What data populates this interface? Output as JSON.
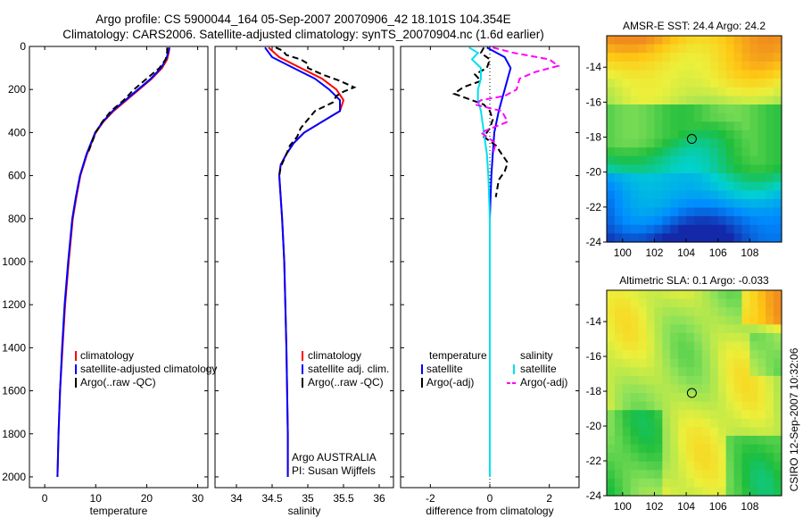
{
  "titles": {
    "line1": "Argo profile: CS 5900044_164 05-Sep-2007 20070906_42 18.101S 104.354E",
    "line2": "Climatology: CARS2006. Satellite-adjusted climatology: synTS_20070904.nc (1.6d earlier)"
  },
  "side_label": "CSIRO 12-Sep-2007 10:32:06",
  "colors": {
    "climatology": "#ff0000",
    "satellite": "#0000ff",
    "argo": "#000000",
    "sal_satellite": "#00e0f0",
    "sal_argo": "#ff00ff"
  },
  "chart_data": [
    {
      "type": "line",
      "panel": "temperature",
      "xlabel": "temperature",
      "ylabel": "",
      "xlim": [
        -3,
        32
      ],
      "ylim": [
        2050,
        0
      ],
      "xticks": [
        0,
        10,
        20,
        30
      ],
      "yticks": [
        0,
        200,
        400,
        600,
        800,
        1000,
        1200,
        1400,
        1600,
        1800,
        2000
      ],
      "legend": [
        "climatology",
        "satellite-adjusted climatology",
        "Argo(..raw -QC)"
      ],
      "series": [
        {
          "name": "climatology",
          "depth": [
            5,
            30,
            60,
            100,
            150,
            200,
            250,
            300,
            350,
            400,
            500,
            600,
            700,
            800,
            1000,
            1200,
            1400,
            1600,
            1800,
            2000
          ],
          "values": [
            24.5,
            24.3,
            24.0,
            23.0,
            21.0,
            18.5,
            16.0,
            13.5,
            11.5,
            10.0,
            8.3,
            7.0,
            6.2,
            5.5,
            4.7,
            4.0,
            3.5,
            3.0,
            2.7,
            2.5
          ]
        },
        {
          "name": "satellite-adjusted climatology",
          "depth": [
            5,
            30,
            60,
            100,
            150,
            200,
            250,
            300,
            350,
            400,
            500,
            600,
            700,
            800,
            1000,
            1200,
            1400,
            1600,
            1800,
            2000
          ],
          "values": [
            24.4,
            24.2,
            23.8,
            22.8,
            20.8,
            18.3,
            15.8,
            13.3,
            11.4,
            9.9,
            8.2,
            6.9,
            6.1,
            5.4,
            4.6,
            3.9,
            3.4,
            3.0,
            2.7,
            2.5
          ]
        },
        {
          "name": "Argo(..raw -QC)",
          "depth": [
            5,
            30,
            60,
            100,
            150,
            200,
            250,
            300,
            350,
            400,
            500
          ],
          "values": [
            24.0,
            24.0,
            23.7,
            22.5,
            20.0,
            17.5,
            15.5,
            13.0,
            11.3,
            10.0,
            8.4
          ]
        }
      ]
    },
    {
      "type": "line",
      "panel": "salinity",
      "xlabel": "salinity",
      "xlim": [
        33.7,
        36.2
      ],
      "ylim": [
        2050,
        0
      ],
      "xticks": [
        34,
        34.5,
        35,
        35.5,
        36
      ],
      "legend": [
        "climatology",
        "satellite adj. clim.",
        "Argo(..raw -QC)"
      ],
      "annotation": [
        "Argo AUSTRALIA",
        "PI: Susan Wijffels"
      ],
      "series": [
        {
          "name": "climatology",
          "depth": [
            5,
            50,
            100,
            150,
            200,
            250,
            300,
            350,
            400,
            450,
            500,
            550,
            600,
            700,
            800,
            1000,
            1400,
            1800,
            2000
          ],
          "values": [
            34.45,
            34.6,
            34.9,
            35.2,
            35.4,
            35.5,
            35.45,
            35.2,
            34.95,
            34.8,
            34.7,
            34.62,
            34.6,
            34.62,
            34.64,
            34.67,
            34.7,
            34.72,
            34.72
          ]
        },
        {
          "name": "satellite adj. clim.",
          "depth": [
            5,
            50,
            100,
            150,
            200,
            250,
            300,
            350,
            400,
            450,
            500,
            550,
            600,
            700,
            800,
            1000,
            1400,
            1800,
            2000
          ],
          "values": [
            34.4,
            34.5,
            34.8,
            35.1,
            35.3,
            35.45,
            35.45,
            35.2,
            34.95,
            34.8,
            34.7,
            34.62,
            34.6,
            34.62,
            34.64,
            34.67,
            34.7,
            34.72,
            34.72
          ]
        },
        {
          "name": "Argo(..raw -QC)",
          "depth": [
            5,
            20,
            40,
            60,
            80,
            100,
            130,
            160,
            190,
            210,
            230,
            260,
            300,
            340,
            380,
            420,
            460,
            500,
            560,
            600
          ],
          "values": [
            34.55,
            34.65,
            34.7,
            34.9,
            35.0,
            35.0,
            35.2,
            35.45,
            35.65,
            35.5,
            35.4,
            35.35,
            35.1,
            35.0,
            34.9,
            34.85,
            34.75,
            34.7,
            34.62,
            34.6
          ]
        }
      ]
    },
    {
      "type": "line",
      "panel": "difference",
      "xlabel": "difference from climatology",
      "xlim": [
        -3,
        3
      ],
      "ylim": [
        2050,
        0
      ],
      "xticks": [
        -2,
        0,
        2
      ],
      "legend_temperature": [
        "temperature",
        "satellite",
        "Argo(-adj)"
      ],
      "legend_salinity": [
        "salinity",
        "satellite",
        "Argo(-adj)"
      ],
      "series": [
        {
          "name": "temperature satellite",
          "depth": [
            5,
            50,
            100,
            150,
            200,
            250,
            300,
            400,
            500,
            600,
            800,
            1000,
            1500,
            2000
          ],
          "values": [
            -0.1,
            0.5,
            0.7,
            0.6,
            0.5,
            0.4,
            0.3,
            0.15,
            0.1,
            0.05,
            0.0,
            0.0,
            0.0,
            0.0
          ]
        },
        {
          "name": "temperature Argo(-adj)",
          "depth": [
            5,
            30,
            60,
            100,
            130,
            160,
            190,
            220,
            250,
            270,
            300,
            340,
            380,
            420,
            460,
            500,
            540,
            580,
            620,
            700
          ],
          "values": [
            -0.2,
            -0.3,
            0.0,
            -0.1,
            -0.5,
            -0.3,
            -0.9,
            -1.2,
            -0.6,
            -0.2,
            0.0,
            0.1,
            0.0,
            -0.2,
            0.2,
            0.4,
            0.6,
            0.5,
            0.3,
            0.2
          ]
        },
        {
          "name": "salinity satellite",
          "depth": [
            5,
            30,
            60,
            100,
            150,
            200,
            250,
            300,
            400,
            500,
            600,
            800,
            1000,
            1500,
            2000
          ],
          "values": [
            -0.7,
            -0.4,
            -0.6,
            -0.3,
            -0.3,
            -0.4,
            -0.4,
            -0.3,
            -0.2,
            -0.1,
            -0.05,
            0.0,
            0.0,
            0.0,
            0.0
          ]
        },
        {
          "name": "salinity Argo(-adj)",
          "depth": [
            5,
            30,
            60,
            90,
            120,
            150,
            200,
            230,
            250,
            270,
            300,
            350,
            400,
            450,
            500
          ],
          "values": [
            0.1,
            0.8,
            2.0,
            2.3,
            1.5,
            1.0,
            0.9,
            0.5,
            -0.3,
            -0.5,
            0.4,
            0.6,
            -0.3,
            0.2,
            0.1
          ]
        }
      ]
    },
    {
      "type": "heatmap",
      "panel": "AMSR-E SST",
      "title": "AMSR-E SST: 24.4 Argo: 24.2",
      "xlim": [
        99,
        110
      ],
      "ylim": [
        -24,
        -12.2
      ],
      "xticks": [
        100,
        102,
        104,
        106,
        108
      ],
      "yticks": [
        -14,
        -16,
        -18,
        -20,
        -22,
        -24
      ],
      "marker": [
        104.354,
        -18.101
      ]
    },
    {
      "type": "heatmap",
      "panel": "Altimetric SLA",
      "title": "Altimetric SLA: 0.1 Argo: -0.033",
      "xlim": [
        99,
        110
      ],
      "ylim": [
        -24,
        -12.2
      ],
      "xticks": [
        100,
        102,
        104,
        106,
        108
      ],
      "yticks": [
        -14,
        -16,
        -18,
        -20,
        -22,
        -24
      ],
      "marker": [
        104.354,
        -18.101
      ]
    }
  ]
}
